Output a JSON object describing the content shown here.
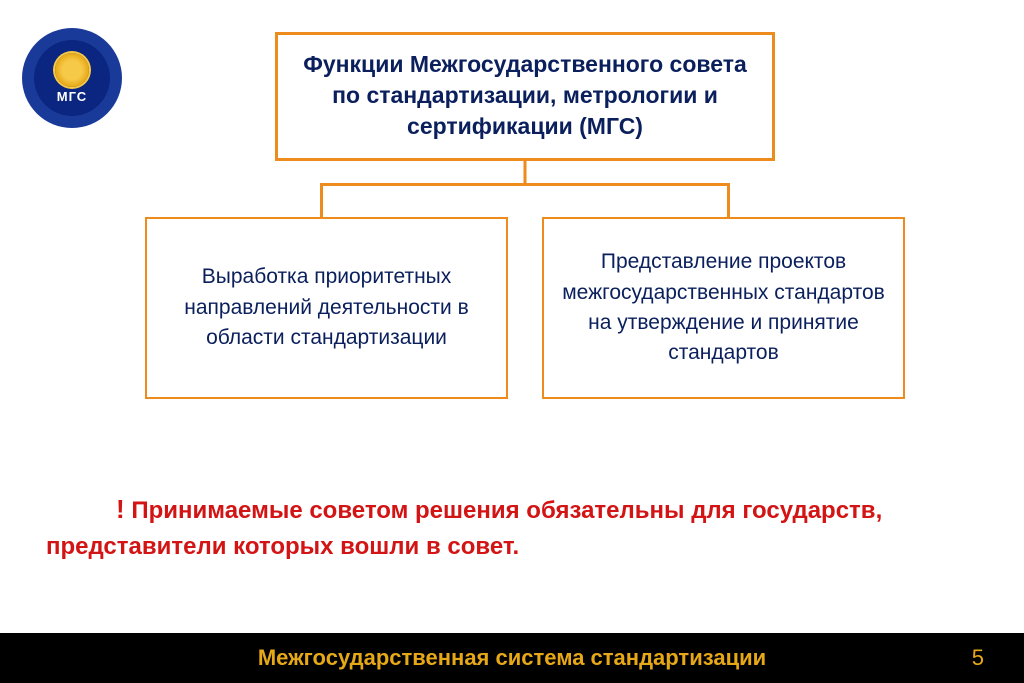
{
  "logo": {
    "abbrev": "МГС",
    "outer_bg": "#1a3a9a",
    "inner_bg": "#0a2680",
    "sun_color": "#f7c948",
    "text_color": "#ffffff"
  },
  "diagram": {
    "type": "tree",
    "border_color": "#ed8b1c",
    "connector_color": "#ed8b1c",
    "text_color": "#0a1f5c",
    "root": {
      "text": "Функции Межгосударственного совета по стандартизации, метрологии и сертификации (МГС)",
      "border_width": 3,
      "font_size": 23,
      "font_weight": "bold"
    },
    "children": [
      {
        "text": "Выработка приоритетных направлений деятельности в области стандартизации",
        "border_width": 2,
        "font_size": 21
      },
      {
        "text": "Представление проектов межгосударственных стандартов на утверждение и принятие стандартов",
        "border_width": 2,
        "font_size": 21
      }
    ]
  },
  "note": {
    "bang": "!",
    "text": " Принимаемые советом решения обязательны для государств, представители которых вошли в совет.",
    "color": "#d31414",
    "font_size": 24,
    "font_weight": "bold"
  },
  "footer": {
    "title": "Межгосударственная система стандартизации",
    "page_number": "5",
    "bg_color": "#000000",
    "text_color": "#e6a817",
    "font_size": 22
  },
  "background_color": "#ffffff"
}
